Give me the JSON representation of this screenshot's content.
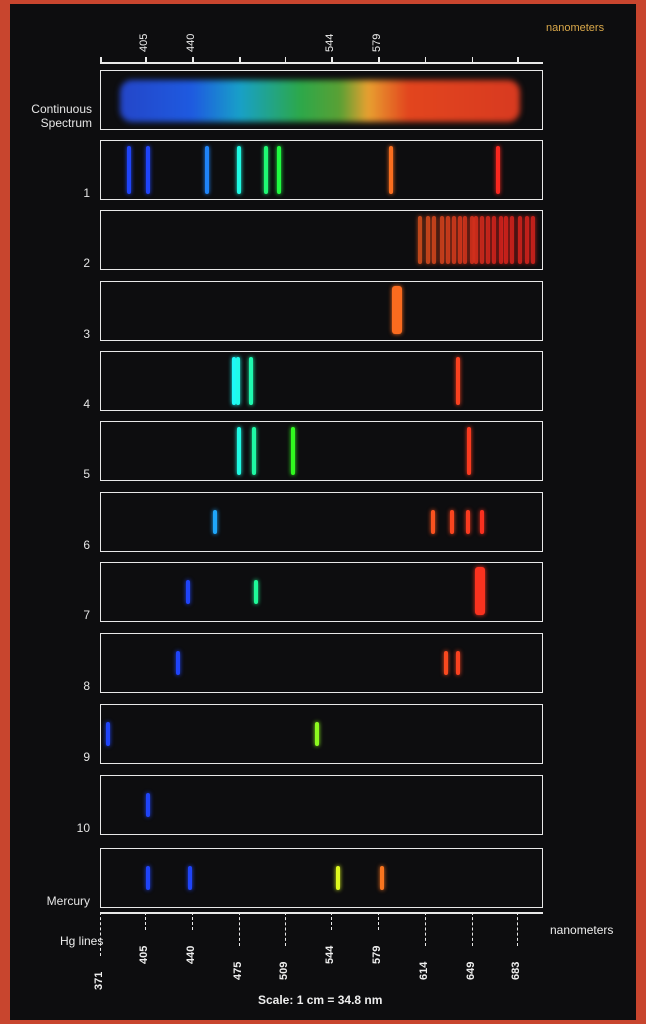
{
  "header": {
    "unit": "nanometers",
    "labels": [
      405,
      440,
      544,
      579
    ]
  },
  "panels": [
    {
      "label": "Continuous Spectrum",
      "lines": []
    },
    {
      "label": "1",
      "lines": [
        393,
        407,
        451,
        475,
        495,
        505,
        589,
        669
      ]
    },
    {
      "label": "2",
      "lines": [
        610,
        616,
        621,
        627,
        631,
        636,
        640,
        644,
        649,
        652,
        657,
        661,
        666,
        671,
        675,
        679,
        685,
        690,
        695
      ]
    },
    {
      "label": "3",
      "lines": [
        593
      ]
    },
    {
      "label": "4",
      "lines": [
        471,
        474,
        484,
        639
      ]
    },
    {
      "label": "5",
      "lines": [
        475,
        486,
        515,
        647
      ]
    },
    {
      "label": "6",
      "lines": [
        457,
        620,
        634,
        646,
        657
      ]
    },
    {
      "label": "7",
      "lines": [
        437,
        488,
        655
      ]
    },
    {
      "label": "8",
      "lines": [
        429,
        630,
        639
      ]
    },
    {
      "label": "9",
      "lines": [
        377,
        533
      ]
    },
    {
      "label": "10",
      "lines": [
        407
      ]
    },
    {
      "label": "Mercury",
      "lines": [
        407,
        438,
        549,
        582
      ]
    }
  ],
  "footer": {
    "label": "Hg lines",
    "ticks": [
      371,
      405,
      440,
      475,
      509,
      544,
      579,
      614,
      649,
      683
    ],
    "unit": "nanometers",
    "scale_note": "Scale: 1 cm = 34.8 nm"
  }
}
